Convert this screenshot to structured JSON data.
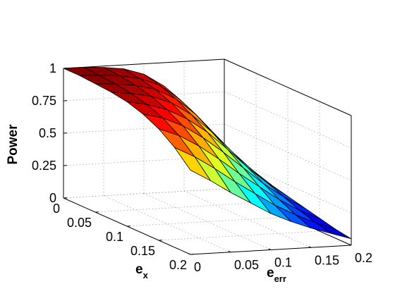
{
  "chart_data": {
    "type": "surface",
    "colormap": "jet",
    "grid": true,
    "zlabel": "Power",
    "xlabel_main": "e",
    "xlabel_sub": "x",
    "ylabel_main": "e",
    "ylabel_sub": "err",
    "x": [
      0,
      0.025,
      0.05,
      0.075,
      0.1,
      0.125,
      0.15,
      0.175,
      0.2
    ],
    "y": [
      0,
      0.025,
      0.05,
      0.075,
      0.1,
      0.125,
      0.15,
      0.175,
      0.2
    ],
    "xlim": [
      0,
      0.2
    ],
    "ylim": [
      0,
      0.2
    ],
    "zlim": [
      0,
      1
    ],
    "x_tick_labels": [
      "0",
      "0.05",
      "0.1",
      "0.15",
      "0.2"
    ],
    "y_tick_labels": [
      "0",
      "0.05",
      "0.1",
      "0.15",
      "0.2"
    ],
    "z_tick_labels": [
      "0",
      "0.25",
      "0.5",
      "0.75",
      "1"
    ],
    "z": [
      [
        1.0,
        1.0,
        0.99,
        0.97,
        0.92,
        0.82,
        0.65,
        0.46,
        0.3
      ],
      [
        1.0,
        0.99,
        0.98,
        0.95,
        0.89,
        0.77,
        0.6,
        0.42,
        0.27
      ],
      [
        0.99,
        0.98,
        0.96,
        0.92,
        0.84,
        0.71,
        0.54,
        0.37,
        0.23
      ],
      [
        0.98,
        0.96,
        0.93,
        0.87,
        0.77,
        0.63,
        0.47,
        0.32,
        0.19
      ],
      [
        0.96,
        0.93,
        0.88,
        0.8,
        0.69,
        0.55,
        0.4,
        0.27,
        0.16
      ],
      [
        0.92,
        0.88,
        0.81,
        0.71,
        0.59,
        0.46,
        0.33,
        0.22,
        0.13
      ],
      [
        0.86,
        0.8,
        0.71,
        0.6,
        0.48,
        0.37,
        0.26,
        0.17,
        0.1
      ],
      [
        0.77,
        0.69,
        0.59,
        0.48,
        0.38,
        0.28,
        0.2,
        0.13,
        0.07
      ],
      [
        0.65,
        0.56,
        0.46,
        0.37,
        0.28,
        0.21,
        0.15,
        0.1,
        0.05
      ]
    ]
  }
}
